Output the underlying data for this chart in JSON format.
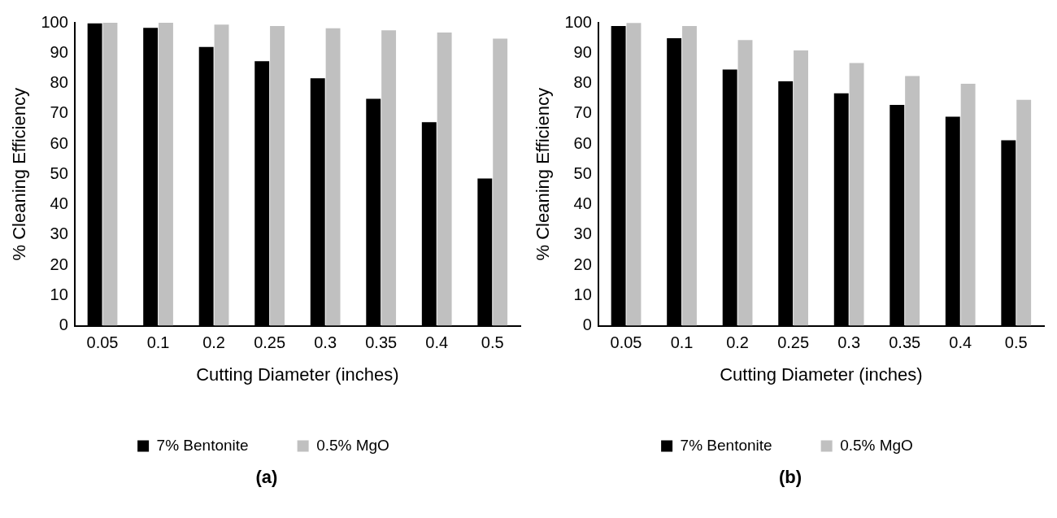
{
  "chart_data": [
    {
      "type": "bar",
      "xlabel": "Cutting Diameter (inches)",
      "ylabel": "% Cleaning Efficiency",
      "categories": [
        "0.05",
        "0.1",
        "0.2",
        "0.25",
        "0.3",
        "0.35",
        "0.4",
        "0.5"
      ],
      "ylim": [
        0,
        100
      ],
      "yticks": [
        0,
        10,
        20,
        30,
        40,
        50,
        60,
        70,
        80,
        90,
        100
      ],
      "grid": false,
      "legend": "bottom",
      "annotations": [
        "(a)"
      ],
      "series": [
        {
          "name": "7% Bentonite",
          "color": "#000000",
          "values": [
            99.8,
            98.3,
            92,
            87.3,
            81.7,
            74.9,
            67.2,
            48.6
          ]
        },
        {
          "name": "0.5% MgO",
          "color": "#c0c0c0",
          "values": [
            100,
            100,
            99.4,
            98.9,
            98.2,
            97.5,
            96.8,
            94.8
          ]
        }
      ]
    },
    {
      "type": "bar",
      "xlabel": "Cutting Diameter (inches)",
      "ylabel": "% Cleaning Efficiency",
      "categories": [
        "0.05",
        "0.1",
        "0.2",
        "0.25",
        "0.3",
        "0.35",
        "0.4",
        "0.5"
      ],
      "ylim": [
        0,
        100
      ],
      "yticks": [
        0,
        10,
        20,
        30,
        40,
        50,
        60,
        70,
        80,
        90,
        100
      ],
      "grid": false,
      "legend": "bottom",
      "annotations": [
        "(b)"
      ],
      "series": [
        {
          "name": "7% Bentonite",
          "color": "#000000",
          "values": [
            98.9,
            94.9,
            84.6,
            80.7,
            76.7,
            72.9,
            69,
            61.2
          ]
        },
        {
          "name": "0.5% MgO",
          "color": "#c0c0c0",
          "values": [
            99.9,
            98.9,
            94.3,
            90.9,
            86.7,
            82.4,
            79.9,
            74.6
          ]
        }
      ]
    }
  ]
}
